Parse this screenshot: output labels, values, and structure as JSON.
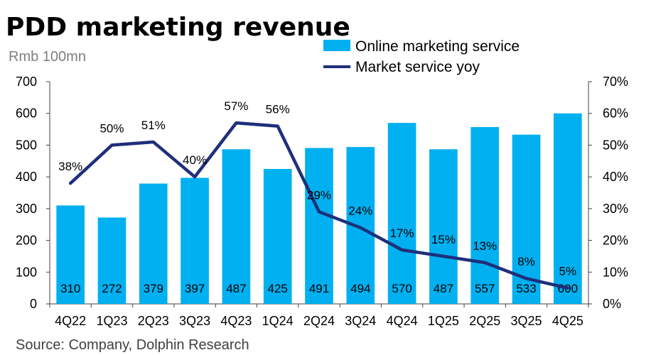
{
  "chart_data": {
    "type": "bar",
    "title": "PDD marketing revenue",
    "unit_label": "Rmb 100mn",
    "categories": [
      "4Q22",
      "1Q23",
      "2Q23",
      "3Q23",
      "4Q23",
      "1Q24",
      "2Q24",
      "3Q24",
      "4Q24",
      "1Q25",
      "2Q25",
      "3Q25",
      "4Q25"
    ],
    "series": [
      {
        "name": "Online marketing service",
        "type": "bar",
        "axis": "left",
        "values": [
          310,
          272,
          379,
          397,
          487,
          425,
          491,
          494,
          570,
          487,
          557,
          533,
          600
        ],
        "labels": [
          "310",
          "272",
          "379",
          "397",
          "487",
          "425",
          "491",
          "494",
          "570",
          "487",
          "557",
          "533",
          "600"
        ]
      },
      {
        "name": "Market service yoy",
        "type": "line",
        "axis": "right",
        "values": [
          38,
          50,
          51,
          40,
          57,
          56,
          29,
          24,
          17,
          15,
          13,
          8,
          5
        ],
        "labels": [
          "38%",
          "50%",
          "51%",
          "40%",
          "57%",
          "56%",
          "29%",
          "24%",
          "17%",
          "15%",
          "13%",
          "8%",
          "5%"
        ]
      }
    ],
    "ylim_left": [
      0,
      700
    ],
    "ylim_right": [
      0,
      70
    ],
    "yticks_left": [
      "0",
      "100",
      "200",
      "300",
      "400",
      "500",
      "600",
      "700"
    ],
    "yticks_right": [
      "0%",
      "10%",
      "20%",
      "30%",
      "40%",
      "50%",
      "60%",
      "70%"
    ],
    "legend_position": "top-right",
    "grid": false,
    "source": "Source: Company, Dolphin Research",
    "colors": {
      "bar": "#00b0f0",
      "line": "#1f2f7a",
      "axis": "#404040"
    }
  }
}
